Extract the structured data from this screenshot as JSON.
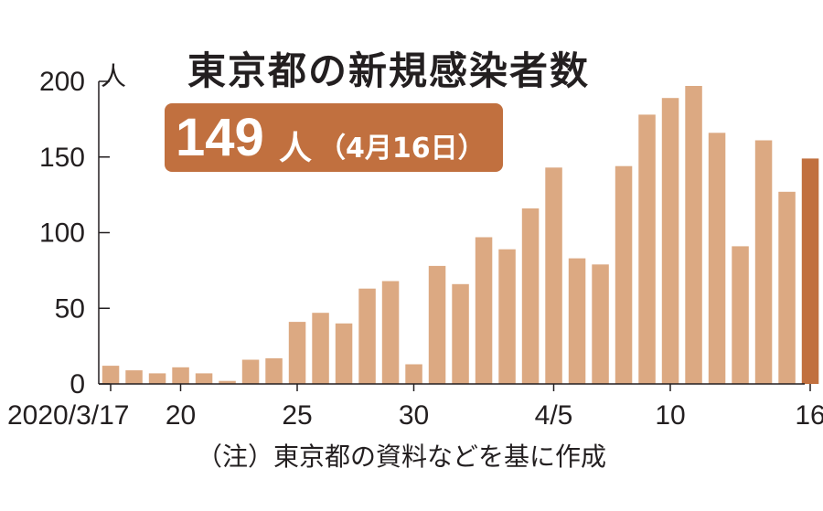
{
  "chart_data": {
    "type": "bar",
    "title": "東京都の新規感染者数",
    "highlight": {
      "value": "149",
      "unit": "人",
      "date": "（4月16日）"
    },
    "ylabel": "人",
    "ylim": [
      0,
      200
    ],
    "yticks": [
      0,
      50,
      100,
      150,
      200
    ],
    "x": [
      "3/17",
      "3/18",
      "3/19",
      "3/20",
      "3/21",
      "3/22",
      "3/23",
      "3/24",
      "3/25",
      "3/26",
      "3/27",
      "3/28",
      "3/29",
      "3/30",
      "3/31",
      "4/1",
      "4/2",
      "4/3",
      "4/4",
      "4/5",
      "4/6",
      "4/7",
      "4/8",
      "4/9",
      "4/10",
      "4/11",
      "4/12",
      "4/13",
      "4/14",
      "4/15",
      "4/16"
    ],
    "values": [
      12,
      9,
      7,
      11,
      7,
      2,
      16,
      17,
      41,
      47,
      40,
      63,
      68,
      13,
      78,
      66,
      97,
      89,
      116,
      143,
      83,
      79,
      144,
      178,
      189,
      197,
      166,
      91,
      161,
      127,
      149
    ],
    "xtick_labels": [
      {
        "index": 0,
        "label": "2020/3/17"
      },
      {
        "index": 3,
        "label": "20"
      },
      {
        "index": 8,
        "label": "25"
      },
      {
        "index": 13,
        "label": "30"
      },
      {
        "index": 19,
        "label": "4/5"
      },
      {
        "index": 24,
        "label": "10"
      },
      {
        "index": 30,
        "label": "16"
      }
    ],
    "highlight_index": 30,
    "colors": {
      "bar": "#dca982",
      "highlight_bar": "#c1703f",
      "badge": "#c1703f",
      "axis": "#231f20"
    },
    "note": "（注）東京都の資料などを基に作成",
    "grid": false
  }
}
